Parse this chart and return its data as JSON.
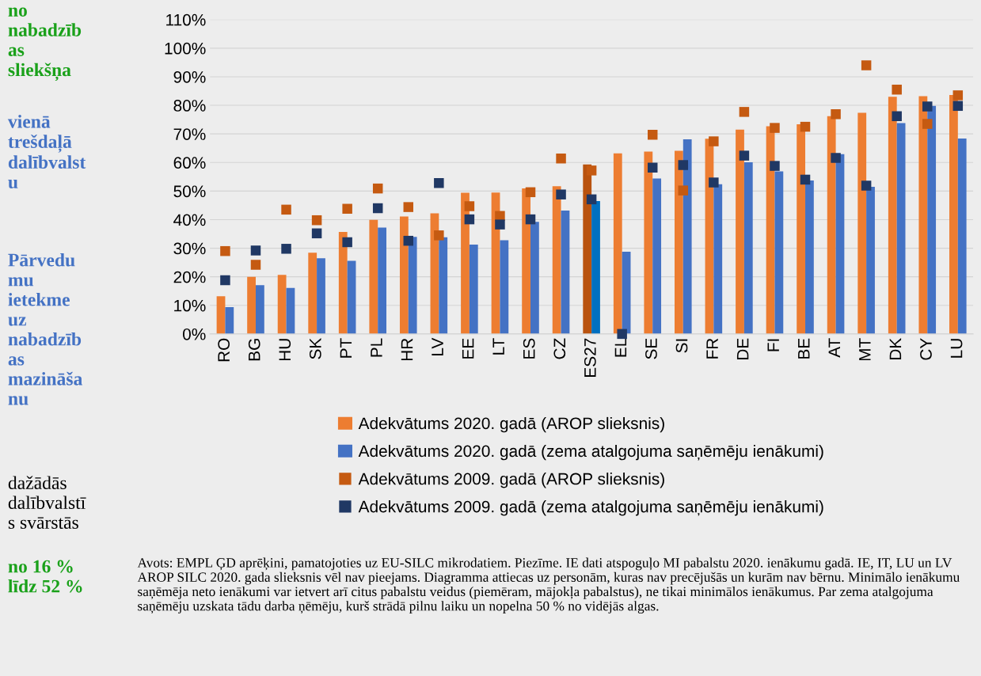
{
  "chart_data": {
    "type": "bar",
    "categories": [
      "RO",
      "BG",
      "HU",
      "SK",
      "PT",
      "PL",
      "HR",
      "LV",
      "EE",
      "LT",
      "ES",
      "CZ",
      "ES27",
      "EL",
      "SE",
      "SI",
      "FR",
      "DE",
      "FI",
      "BE",
      "AT",
      "MT",
      "DK",
      "CY",
      "LU"
    ],
    "series": [
      {
        "name": "Adekvātums 2020. gadā (AROP slieksnis)",
        "color": "#ed7d31",
        "colors": [
          "#ed7d31",
          "#ed7d31",
          "#ed7d31",
          "#ed7d31",
          "#ed7d31",
          "#ed7d31",
          "#ed7d31",
          "#ed7d31",
          "#ed7d31",
          "#ed7d31",
          "#ed7d31",
          "#ed7d31",
          "#b9530f",
          "#ed7d31",
          "#ed7d31",
          "#ed7d31",
          "#ed7d31",
          "#ed7d31",
          "#ed7d31",
          "#ed7d31",
          "#ed7d31",
          "#ed7d31",
          "#ed7d31",
          "#ed7d31",
          "#ed7d31"
        ],
        "values": [
          13.2,
          20,
          20.7,
          28.4,
          35.7,
          39.9,
          41.1,
          42.2,
          49.4,
          49.5,
          50.9,
          51.7,
          59.3,
          63.2,
          63.8,
          64.1,
          68.3,
          71.5,
          72.7,
          73.4,
          76.2,
          77.4,
          83.0,
          83.2,
          83.6
        ]
      },
      {
        "name": "Adekvātums 2020. gadā (zema atalgojuma saņēmēju ienākumi)",
        "color": "#4472c4",
        "colors": [
          "#4472c4",
          "#4472c4",
          "#4472c4",
          "#4472c4",
          "#4472c4",
          "#4472c4",
          "#4472c4",
          "#4472c4",
          "#4472c4",
          "#4472c4",
          "#4472c4",
          "#4472c4",
          "#0070c0",
          "#4472c4",
          "#4472c4",
          "#4472c4",
          "#4472c4",
          "#4472c4",
          "#4472c4",
          "#4472c4",
          "#4472c4",
          "#4472c4",
          "#4472c4",
          "#4472c4",
          "#4472c4"
        ],
        "values": [
          9.4,
          17.1,
          16.1,
          26.5,
          25.6,
          37.2,
          34,
          33.8,
          31.3,
          32.8,
          39.2,
          43.2,
          46.5,
          28.8,
          54.4,
          68.1,
          52.4,
          60.1,
          56.9,
          53.7,
          62.9,
          51.5,
          73.8,
          79.8,
          68.4
        ]
      },
      {
        "name": "Adekvātums 2009. gadā (AROP slieksnis)",
        "type": "scatter",
        "marker": "square",
        "color": "#c55a11",
        "x": [
          "RO",
          "BG",
          "HU",
          "SK",
          "PT",
          "PL",
          "HR",
          "LV",
          "EE",
          "LT",
          "ES",
          "CZ",
          "ES27",
          "EL",
          "SE",
          "SI",
          "FR",
          "DE",
          "FI",
          "BE",
          "AT",
          "MT",
          "DK",
          "CY",
          "LU"
        ],
        "values": [
          29,
          24.2,
          43.5,
          39.8,
          43.8,
          50.9,
          44.4,
          34.5,
          44.7,
          41.3,
          49.6,
          61.4,
          57.2,
          null,
          69.7,
          50.2,
          67.4,
          77.7,
          72.1,
          72.5,
          76.9,
          94.0,
          85.5,
          73.5,
          83.5
        ]
      },
      {
        "name": "Adekvātums 2009. gadā (zema atalgojuma saņēmēju ienākumi)",
        "type": "scatter",
        "marker": "square",
        "color": "#203864",
        "x": [
          "RO",
          "BG",
          "HU",
          "SK",
          "PT",
          "PL",
          "HR",
          "LV",
          "EE",
          "LT",
          "ES",
          "CZ",
          "ES27",
          "EL",
          "SE",
          "SI",
          "FR",
          "DE",
          "FI",
          "BE",
          "AT",
          "MT",
          "DK",
          "CY",
          "LU"
        ],
        "values": [
          18.8,
          29.2,
          29.8,
          35.2,
          32.1,
          44,
          32.6,
          52.8,
          40.1,
          38.3,
          40.1,
          48.8,
          47.1,
          0,
          58.2,
          59.1,
          53,
          62.4,
          58.8,
          54,
          61.6,
          51.9,
          76.2,
          79.6,
          79.8
        ]
      }
    ],
    "ylim": [
      0,
      110
    ],
    "yticks": [
      {
        "value": 0,
        "label": "0%"
      },
      {
        "value": 10,
        "label": "10%"
      },
      {
        "value": 20,
        "label": "20%"
      },
      {
        "value": 30,
        "label": "30%"
      },
      {
        "value": 40,
        "label": "40%"
      },
      {
        "value": 50,
        "label": "50%"
      },
      {
        "value": 60,
        "label": "60%"
      },
      {
        "value": 70,
        "label": "70%"
      },
      {
        "value": 80,
        "label": "80%"
      },
      {
        "value": 90,
        "label": "90%"
      },
      {
        "value": 100,
        "label": "100%"
      },
      {
        "value": 110,
        "label": "110%"
      }
    ],
    "grid": "y",
    "legend": "bottom",
    "annotations": [
      "no\nnabadzīb\nas\nsliekšņa",
      "vienā\ntrešdaļā\ndalībvalst\nu",
      "Pārvedu\nmu\nietekme\nuz\nnabadzīb\nas\nmazināša\nnu",
      "dažādās\ndalībvalstī\ns svārstās",
      "no 16 %\nlīdz 52 %",
      "Avots: EMPL ĢD aprēķini, pamatojoties uz EU-SILC mikrodatiem. Piezīme. IE dati atspoguļo MI pabalstu 2020. ienākumu gadā. IE, IT, LU un LV AROP SILC 2020. gada slieksnis vēl nav pieejams. Diagramma attiecas uz personām, kuras nav precējušās un kurām nav bērnu. Minimālo ienākumu saņēmēja neto ienākumi var ietvert arī citus pabalstu veidus (piemēram, mājokļa pabalstus), ne tikai minimālos ienākumus. Par zema atalgojuma saņēmēju uzskata tādu darba ņēmēju, kurš strādā pilnu laiku un nopelna 50 % no vidējās algas."
    ]
  }
}
